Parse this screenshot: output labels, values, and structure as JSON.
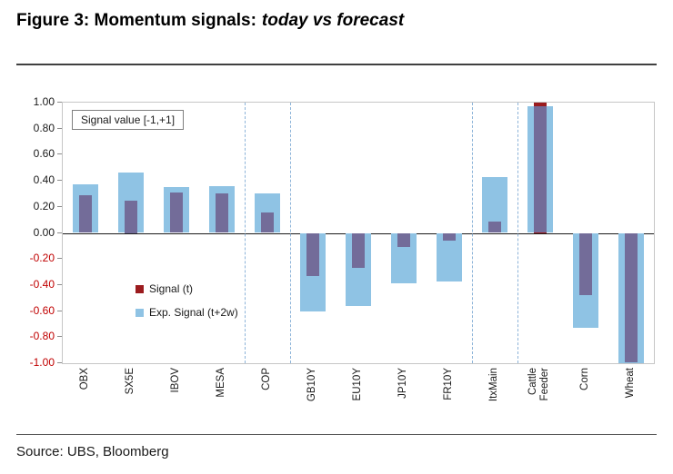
{
  "header": {
    "title_bold": "Figure 3: Momentum signals:",
    "title_italic": "today vs forecast"
  },
  "footer": {
    "source": "Source: UBS, Bloomberg"
  },
  "annotation": "Signal value [-1,+1]",
  "legend": [
    {
      "label": "Signal (t)",
      "color": "#9b1b1e"
    },
    {
      "label": "Exp. Signal (t+2w)",
      "color": "#8fc3e4"
    }
  ],
  "colors": {
    "exp_signal_blue": "#8fc3e4",
    "signal_red": "#9b1b1e",
    "overlap_purple": "#736c99",
    "negative_tick_label": "#c00000",
    "separator_blue": "#8db4d9"
  },
  "chart_data": {
    "type": "bar",
    "title": "Momentum signals: today vs forecast",
    "ylabel": "Signal value [-1,+1]",
    "ylim": [
      -1,
      1
    ],
    "ytick_step": 0.2,
    "grid": false,
    "legend_position": "inside-left",
    "categories": [
      "OBX",
      "SX5E",
      "IBOV",
      "MESA",
      "COP",
      "GB10Y",
      "EU10Y",
      "JP10Y",
      "FR10Y",
      "ItxMain",
      "Cattle Feeder",
      "Corn",
      "Wheat"
    ],
    "series": [
      {
        "name": "Signal (t)",
        "values": [
          0.29,
          0.25,
          0.31,
          0.3,
          0.16,
          -0.33,
          -0.27,
          -0.11,
          -0.06,
          0.09,
          1.0,
          -0.48,
          -0.99
        ]
      },
      {
        "name": "Exp. Signal (t+2w)",
        "values": [
          0.37,
          0.46,
          0.35,
          0.36,
          0.3,
          -0.6,
          -0.56,
          -0.39,
          -0.37,
          0.43,
          0.97,
          -0.73,
          -1.0
        ]
      }
    ],
    "group_separators_after": [
      3,
      4,
      8,
      9
    ]
  }
}
